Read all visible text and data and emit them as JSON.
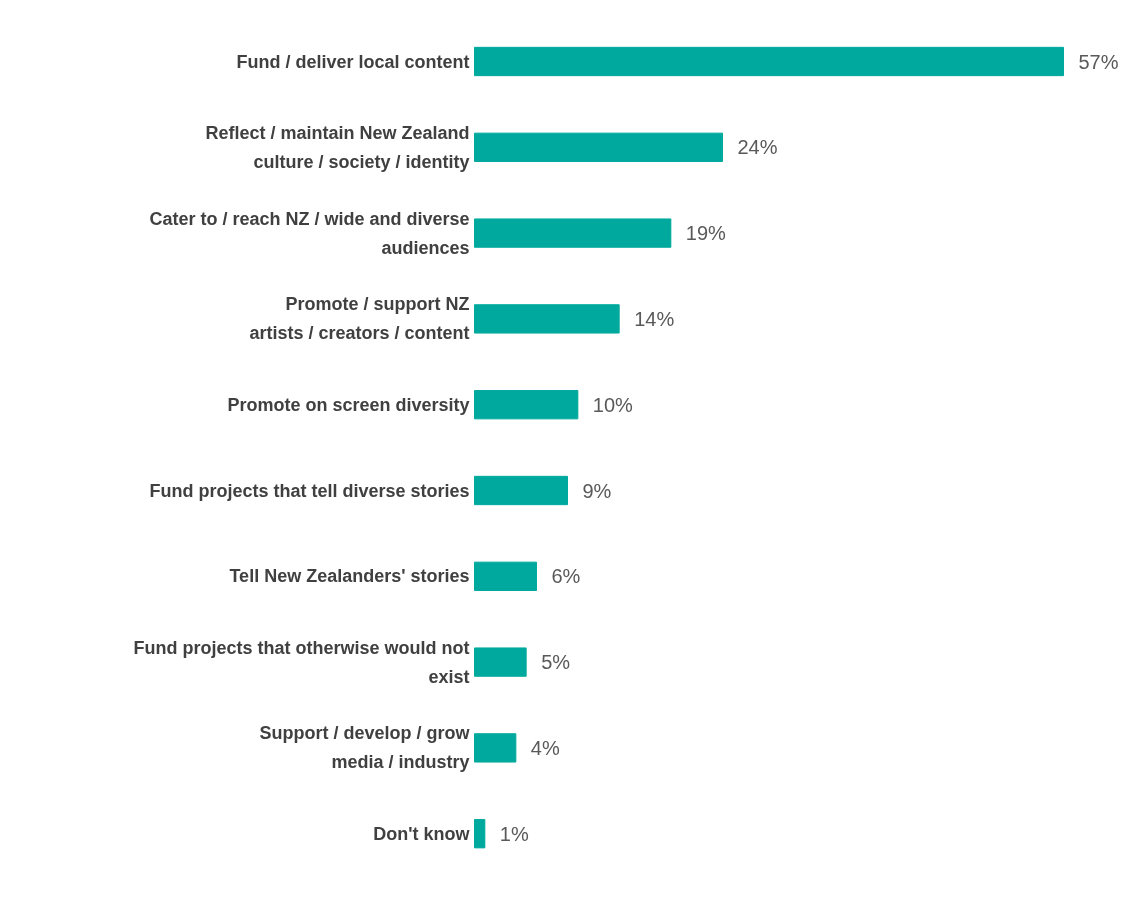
{
  "chart_data": {
    "type": "bar",
    "orientation": "horizontal",
    "categories": [
      "Fund / deliver local content",
      "Reflect / maintain New Zealand\nculture / society / identity",
      "Cater to / reach NZ / wide and diverse\naudiences",
      "Promote / support NZ\nartists / creators / content",
      "Promote on screen diversity",
      "Fund projects that tell diverse stories",
      "Tell New Zealanders' stories",
      "Fund projects that otherwise would not\nexist",
      "Support / develop / grow\nmedia / industry",
      "Don't know"
    ],
    "values": [
      57,
      24,
      19,
      14,
      10,
      9,
      6,
      5,
      4,
      1
    ],
    "value_labels": [
      "57%",
      "24%",
      "19%",
      "14%",
      "10%",
      "9%",
      "6%",
      "5%",
      "4%",
      "1%"
    ],
    "color": "#00a99d"
  }
}
